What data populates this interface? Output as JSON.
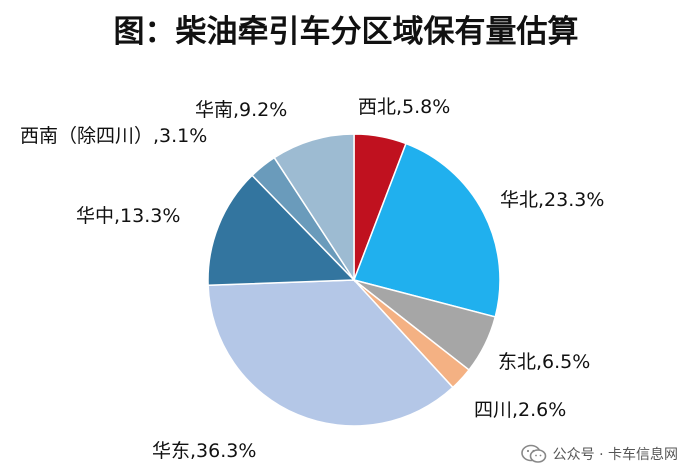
{
  "chart_data": {
    "type": "pie",
    "title": "图：柴油牵引车分区域保有量估算",
    "slices": [
      {
        "label": "西北,5.8%",
        "value": 5.8,
        "color": "#c0111f"
      },
      {
        "label": "华北,23.3%",
        "value": 23.3,
        "color": "#20b0ee"
      },
      {
        "label": "东北,6.5%",
        "value": 6.5,
        "color": "#a6a6a6"
      },
      {
        "label": "四川,2.6%",
        "value": 2.6,
        "color": "#f4b183"
      },
      {
        "label": "华东,36.3%",
        "value": 36.3,
        "color": "#b4c7e7"
      },
      {
        "label": "华中,13.3%",
        "value": 13.3,
        "color": "#33759f"
      },
      {
        "label": "西南（除四川）,3.1%",
        "value": 3.1,
        "color": "#6a9bbb"
      },
      {
        "label": "华南,9.2%",
        "value": 9.2,
        "color": "#9dbbd2"
      }
    ],
    "start": "12 o'clock",
    "direction": "clockwise"
  },
  "watermark": {
    "icon": "wechat-icon",
    "text": "公众号 · 卡车信息网"
  }
}
